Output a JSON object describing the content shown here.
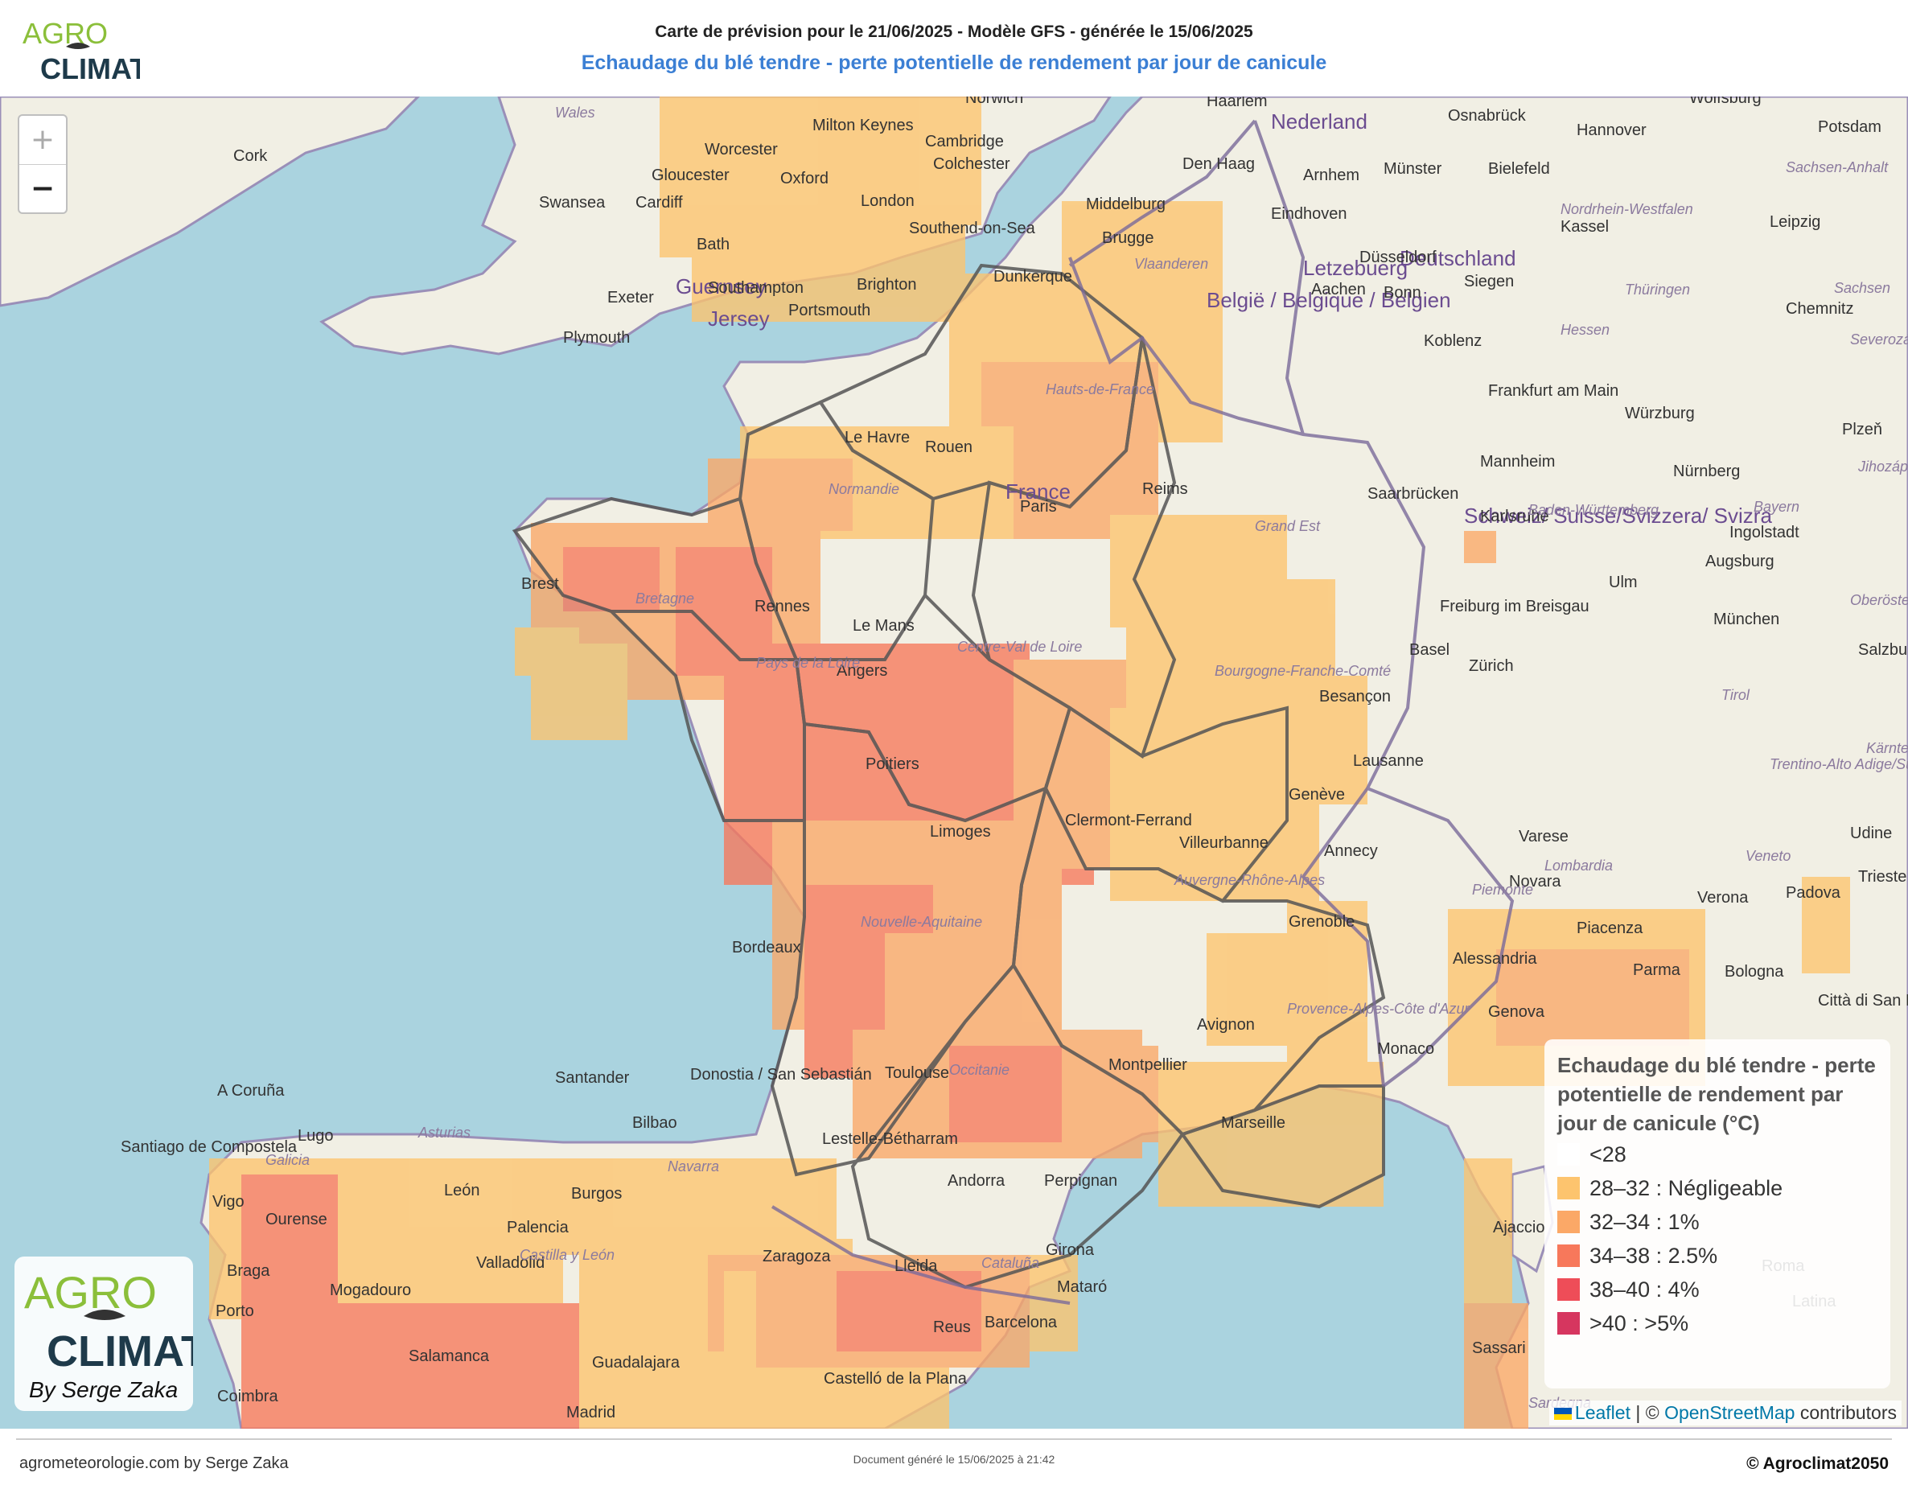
{
  "header": {
    "title_line1": "Carte de prévision pour le 21/06/2025 - Modèle GFS - générée le 15/06/2025",
    "title_line2": "Echaudage du blé tendre - perte potentielle de rendement par jour de canicule",
    "logo_text_top": "AGRO",
    "logo_text_bottom": "CLIMAT"
  },
  "map_controls": {
    "zoom_in": "+",
    "zoom_out": "−"
  },
  "legend": {
    "title": "Echaudage du blé tendre - perte potentielle de rendement par jour de canicule (°C)",
    "items": [
      {
        "label": "<28",
        "color": "#ffffff"
      },
      {
        "label": "28–32 : Négligeable",
        "color": "#fdc46e"
      },
      {
        "label": "32–34 : 1%",
        "color": "#fba867"
      },
      {
        "label": "34–38 : 2.5%",
        "color": "#f7785b"
      },
      {
        "label": "38–40 : 4%",
        "color": "#ee4d58"
      },
      {
        "label": ">40 : >5%",
        "color": "#d6365f"
      }
    ]
  },
  "corner_logo": {
    "top": "AGRO",
    "bottom": "CLIMAT",
    "byline": "By Serge Zaka"
  },
  "attribution": {
    "leaflet": "Leaflet",
    "separator": "| ©",
    "osm": "OpenStreetMap",
    "contributors": "contributors"
  },
  "footer": {
    "left": "agrometeorologie.com by Serge Zaka",
    "middle": "Document généré le 15/06/2025 à 21:42",
    "right": "© Agroclimat2050"
  },
  "map_labels": {
    "countries": [
      "Nederland",
      "Deutschland",
      "België / Belgique / Belgien",
      "Letzebuerg",
      "France",
      "Schweiz/ Suisse/Svizzera/ Svizra",
      "Guernsey",
      "Jersey"
    ],
    "cities": [
      "Cork",
      "Swansea",
      "Cardiff",
      "Gloucester",
      "Oxford",
      "London",
      "Cambridge",
      "Colchester",
      "Norwich",
      "Milton Keynes",
      "Worcester",
      "Bath",
      "Southampton",
      "Brighton",
      "Portsmouth",
      "Exeter",
      "Plymouth",
      "Southend-on-Sea",
      "Dunkerque",
      "Brugge",
      "Middelburg",
      "Den Haag",
      "Haarlem",
      "Arnhem",
      "Eindhoven",
      "Düsseldorf",
      "Aachen",
      "Bonn",
      "Siegen",
      "Koblenz",
      "Kassel",
      "Bielefeld",
      "Münster",
      "Osnabrück",
      "Hannover",
      "Wolfsburg",
      "Potsdam",
      "Leipzig",
      "Chemnitz",
      "Frankfurt am Main",
      "Würzburg",
      "Nürnberg",
      "Mannheim",
      "Karlsruhe",
      "Saarbrücken",
      "Ingolstadt",
      "Augsburg",
      "Ulm",
      "München",
      "Salzburg",
      "Freiburg im Breisgau",
      "Basel",
      "Zürich",
      "Besançon",
      "Lausanne",
      "Genève",
      "Annecy",
      "Grenoble",
      "Villeurbanne",
      "Clermont-Ferrand",
      "Limoges",
      "Poitiers",
      "Bordeaux",
      "Toulouse",
      "Montpellier",
      "Avignon",
      "Marseille",
      "Monaco",
      "Perpignan",
      "Andorra",
      "Lestelle-Bétharram",
      "Donostia / San Sebastián",
      "Bilbao",
      "Santander",
      "Burgos",
      "León",
      "Palencia",
      "Valladolid",
      "Zaragoza",
      "Lleida",
      "Barcelona",
      "Mataró",
      "Girona",
      "Reus",
      "Castelló de la Plana",
      "Guadalajara",
      "Madrid",
      "Salamanca",
      "Mogadouro",
      "Braga",
      "Porto",
      "Coimbra",
      "Vigo",
      "Ourense",
      "Lugo",
      "A Coruña",
      "Santiago de Compostela",
      "Le Havre",
      "Rouen",
      "Paris",
      "Reims",
      "Rennes",
      "Brest",
      "Le Mans",
      "Angers",
      "Novara",
      "Varese",
      "Piacenza",
      "Verona",
      "Padova",
      "Parma",
      "Bologna",
      "Genova",
      "Alessandria",
      "Udine",
      "Trieste",
      "Città di San Marino",
      "Ajaccio",
      "Sassari",
      "Latina",
      "Plzeň",
      "Roma"
    ],
    "regions": [
      "Wales",
      "Hauts-de-France",
      "Normandie",
      "Bretagne",
      "Pays de la Loire",
      "Centre-Val de Loire",
      "Grand Est",
      "Bourgogne-Franche-Comté",
      "Auvergne-Rhône-Alpes",
      "Nouvelle-Aquitaine",
      "Occitanie",
      "Provence-Alpes-Côte d'Azur",
      "Baden-Württemberg",
      "Bayern",
      "Hessen",
      "Thüringen",
      "Sachsen",
      "Sachsen-Anhalt",
      "Nordrhein-Westfalen",
      "Vlaanderen",
      "Tirol",
      "Lombardia",
      "Piemonte",
      "Veneto",
      "Trentino-Alto Adige/Südtirol",
      "Oberösterreich",
      "Jihozápad",
      "Severozápad",
      "Kärnten",
      "Galicia",
      "Asturias",
      "Navarra",
      "Castilla y León",
      "Cataluña",
      "Sardegna"
    ]
  }
}
